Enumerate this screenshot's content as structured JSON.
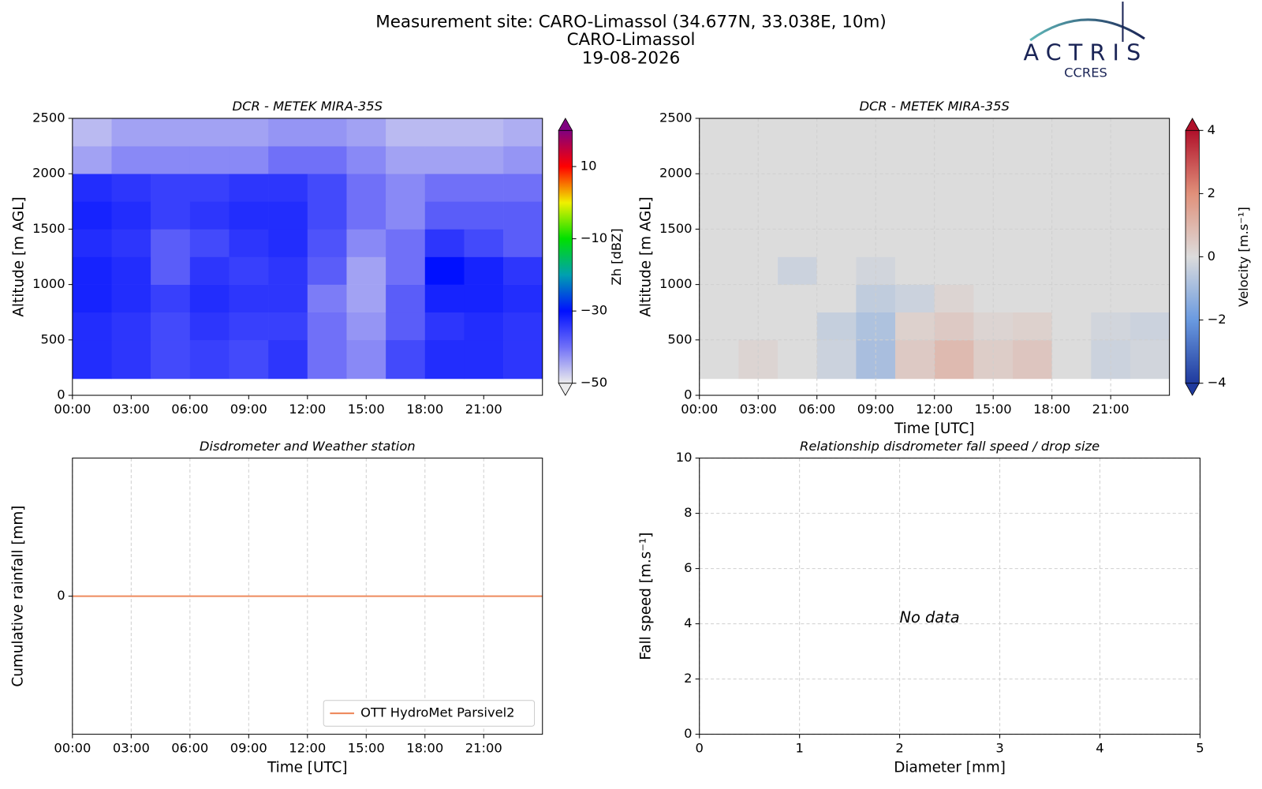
{
  "header": {
    "lines": [
      "Measurement site: CARO-Limassol (34.677N, 33.038E, 10m)",
      "CARO-Limassol",
      "19-08-2026"
    ]
  },
  "logo": {
    "name": "ACTRIS",
    "sub": "CCRES"
  },
  "chart_data": [
    {
      "type": "heatmap",
      "title": "DCR - METEK MIRA-35S",
      "y_label": "Altitude [m AGL]",
      "xlim": [
        0,
        24
      ],
      "ylim": [
        0,
        2500
      ],
      "xticks": [
        {
          "value": 0,
          "label": "00:00"
        },
        {
          "value": 3,
          "label": "03:00"
        },
        {
          "value": 6,
          "label": "06:00"
        },
        {
          "value": 9,
          "label": "09:00"
        },
        {
          "value": 12,
          "label": "12:00"
        },
        {
          "value": 15,
          "label": "15:00"
        },
        {
          "value": 18,
          "label": "18:00"
        },
        {
          "value": 21,
          "label": "21:00"
        }
      ],
      "yticks": [
        0,
        500,
        1000,
        1500,
        2000,
        2500
      ],
      "xbins": [
        0,
        2,
        4,
        6,
        8,
        10,
        12,
        14,
        16,
        18,
        20,
        22,
        24
      ],
      "ybins": [
        150,
        500,
        750,
        1000,
        1250,
        1500,
        1750,
        2000,
        2250,
        2500
      ],
      "z": [
        [
          -33,
          -34,
          -36,
          -35,
          -36,
          -34,
          -40,
          -42,
          -36,
          -33,
          -33,
          -34
        ],
        [
          -33,
          -34,
          -36,
          -34,
          -35,
          -35,
          -40,
          -43,
          -38,
          -34,
          -33,
          -34
        ],
        [
          -32,
          -33,
          -35,
          -33,
          -34,
          -34,
          -41,
          -44,
          -38,
          -32,
          -32,
          -33
        ],
        [
          -32,
          -33,
          -38,
          -34,
          -35,
          -34,
          -38,
          -44,
          -40,
          -30,
          -32,
          -34
        ],
        [
          -33,
          -34,
          -38,
          -36,
          -34,
          -33,
          -37,
          -42,
          -40,
          -34,
          -36,
          -38
        ],
        [
          -32,
          -33,
          -35,
          -34,
          -33,
          -33,
          -36,
          -40,
          -42,
          -38,
          -38,
          -38
        ],
        [
          -33,
          -34,
          -35,
          -35,
          -34,
          -34,
          -36,
          -40,
          -42,
          -40,
          -40,
          -40
        ],
        [
          -44,
          -42,
          -42,
          -42,
          -42,
          -40,
          -40,
          -42,
          -44,
          -44,
          -44,
          -43
        ],
        [
          -46,
          -44,
          -44,
          -44,
          -44,
          -43,
          -43,
          -44,
          -46,
          -46,
          -46,
          -45
        ]
      ],
      "colorbar": {
        "label": "Zh [dBZ]",
        "lim": [
          -50,
          20
        ],
        "ticks": [
          {
            "value": -50,
            "label": "−50"
          },
          {
            "value": -30,
            "label": "−30"
          },
          {
            "value": -10,
            "label": "−10"
          },
          10
        ],
        "colors": [
          "#ececec",
          "#7070f8",
          "#0010ff",
          "#00a0b0",
          "#00e000",
          "#f0f000",
          "#ff0000",
          "#800080"
        ]
      }
    },
    {
      "type": "heatmap",
      "title": "DCR - METEK MIRA-35S",
      "y_label": "Altitude [m AGL]",
      "x_label": "Time [UTC]",
      "xlim": [
        0,
        24
      ],
      "ylim": [
        0,
        2500
      ],
      "xticks": [
        {
          "value": 0,
          "label": "00:00"
        },
        {
          "value": 3,
          "label": "03:00"
        },
        {
          "value": 6,
          "label": "06:00"
        },
        {
          "value": 9,
          "label": "09:00"
        },
        {
          "value": 12,
          "label": "12:00"
        },
        {
          "value": 15,
          "label": "15:00"
        },
        {
          "value": 18,
          "label": "18:00"
        },
        {
          "value": 21,
          "label": "21:00"
        }
      ],
      "yticks": [
        0,
        500,
        1000,
        1500,
        2000,
        2500
      ],
      "grid": true,
      "xbins": [
        0,
        2,
        4,
        6,
        8,
        10,
        12,
        14,
        16,
        18,
        20,
        22,
        24
      ],
      "ybins": [
        150,
        500,
        750,
        1000,
        1250,
        1500,
        1750,
        2000,
        2250,
        2500
      ],
      "z": [
        [
          0,
          0.2,
          0,
          -0.3,
          -0.9,
          0.5,
          0.9,
          0.4,
          0.6,
          0,
          -0.3,
          -0.2
        ],
        [
          0,
          0,
          0,
          -0.4,
          -0.8,
          0.3,
          0.5,
          0.2,
          0.3,
          0,
          -0.2,
          -0.3
        ],
        [
          0,
          0,
          0,
          0,
          -0.5,
          -0.3,
          0.2,
          0,
          0,
          0,
          0,
          0
        ],
        [
          0,
          0,
          -0.3,
          0,
          -0.2,
          0,
          0,
          0,
          0,
          0,
          0,
          0
        ],
        [
          0,
          0,
          0,
          0,
          0,
          0,
          0,
          0,
          0,
          0,
          0,
          0
        ],
        [
          0,
          0,
          0,
          0,
          0,
          0,
          0,
          0,
          0,
          0,
          0,
          0
        ],
        [
          0,
          0,
          0,
          0,
          0,
          0,
          0,
          0,
          0,
          0,
          0,
          0
        ],
        [
          0,
          0,
          0,
          0,
          0,
          0,
          0,
          0,
          0,
          0,
          0,
          0
        ],
        [
          0,
          0,
          0,
          0,
          0,
          0,
          0,
          0,
          0,
          0,
          0,
          0
        ]
      ],
      "colorbar": {
        "label": "Velocity [m.s⁻¹]",
        "lim": [
          -4,
          4
        ],
        "ticks": [
          {
            "value": -4,
            "label": "−4"
          },
          {
            "value": -2,
            "label": "−2"
          },
          0,
          2,
          4
        ],
        "colors": [
          "#1f3a9e",
          "#6a9ae0",
          "#dcdcdc",
          "#e0907a",
          "#b0102a"
        ]
      }
    },
    {
      "type": "line",
      "title": "Disdrometer and Weather station",
      "y_label": "Cumulative rainfall [mm]",
      "x_label": "Time [UTC]",
      "xlim": [
        0,
        24
      ],
      "ylim": [
        -0.055,
        0.055
      ],
      "xticks": [
        {
          "value": 0,
          "label": "00:00"
        },
        {
          "value": 3,
          "label": "03:00"
        },
        {
          "value": 6,
          "label": "06:00"
        },
        {
          "value": 9,
          "label": "09:00"
        },
        {
          "value": 12,
          "label": "12:00"
        },
        {
          "value": 15,
          "label": "15:00"
        },
        {
          "value": 18,
          "label": "18:00"
        },
        {
          "value": 21,
          "label": "21:00"
        }
      ],
      "yticks": [
        0
      ],
      "grid": true,
      "legend": "lower right",
      "series": [
        {
          "name": "OTT HydroMet Parsivel2",
          "color": "#ee8a5e",
          "x": [
            0,
            24
          ],
          "values": [
            0,
            0
          ]
        }
      ]
    },
    {
      "type": "scatter",
      "title": "Relationship disdrometer fall speed / drop size",
      "y_label": "Fall speed [m.s⁻¹]",
      "x_label": "Diameter [mm]",
      "xlim": [
        0,
        5
      ],
      "ylim": [
        0,
        10
      ],
      "xticks": [
        0,
        1,
        2,
        3,
        4,
        5
      ],
      "yticks": [
        0,
        2,
        4,
        6,
        8,
        10
      ],
      "grid": true,
      "annotation": "No data"
    }
  ]
}
